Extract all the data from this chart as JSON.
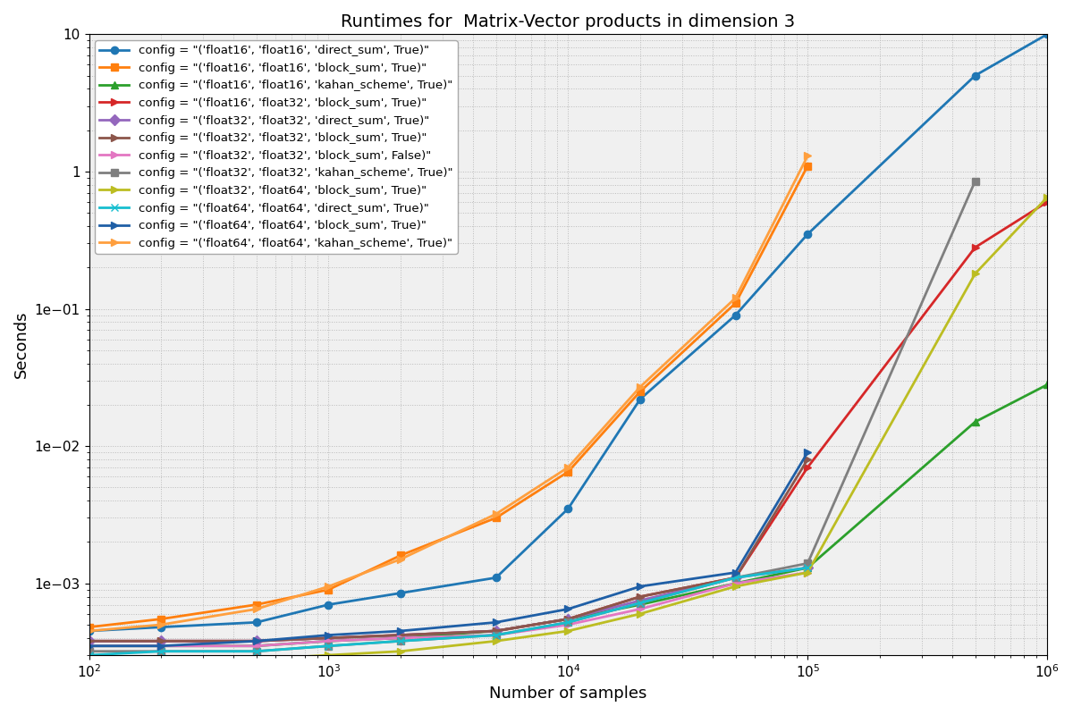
{
  "title": "Runtimes for  Matrix-Vector products in dimension 3",
  "xlabel": "Number of samples",
  "ylabel": "Seconds",
  "x": [
    100,
    200,
    500,
    1000,
    2000,
    5000,
    10000,
    20000,
    50000,
    100000,
    500000,
    1000000
  ],
  "series": [
    {
      "label": "config = \"('float16', 'float16', 'direct_sum', True)\"",
      "color": "#1f77b4",
      "marker": "o",
      "lw": 2.0,
      "y": [
        0.00045,
        0.00048,
        0.00052,
        0.0007,
        0.00085,
        0.0011,
        0.0035,
        0.022,
        0.09,
        0.35,
        5.0,
        10.0
      ]
    },
    {
      "label": "config = \"('float16', 'float16', 'block_sum', True)\"",
      "color": "#ff7f0e",
      "marker": "s",
      "lw": 2.0,
      "y": [
        0.00048,
        0.00055,
        0.0007,
        0.0009,
        0.0016,
        0.003,
        0.0065,
        0.025,
        0.11,
        1.1,
        null,
        null
      ]
    },
    {
      "label": "config = \"('float16', 'float16', 'kahan_scheme', True)\"",
      "color": "#2ca02c",
      "marker": "^",
      "lw": 2.0,
      "y": [
        0.00035,
        0.00035,
        0.00035,
        0.00038,
        0.0004,
        0.00045,
        0.00055,
        0.0007,
        0.001,
        0.0013,
        0.015,
        0.028
      ]
    },
    {
      "label": "config = \"('float16', 'float32', 'block_sum', True)\"",
      "color": "#d62728",
      "marker": ">",
      "lw": 2.0,
      "y": [
        0.00038,
        0.00038,
        0.00038,
        0.0004,
        0.00042,
        0.00045,
        0.00055,
        0.0008,
        0.0011,
        0.007,
        0.28,
        0.6
      ]
    },
    {
      "label": "config = \"('float32', 'float32', 'direct_sum', True)\"",
      "color": "#9467bd",
      "marker": "D",
      "lw": 2.0,
      "y": [
        0.00038,
        0.00038,
        0.00038,
        0.0004,
        0.00042,
        0.00045,
        0.00055,
        0.00075,
        0.0011,
        0.0013,
        null,
        null
      ]
    },
    {
      "label": "config = \"('float32', 'float32', 'block_sum', True)\"",
      "color": "#8c564b",
      "marker": ">",
      "lw": 2.0,
      "y": [
        0.00038,
        0.00038,
        0.00038,
        0.0004,
        0.00042,
        0.00045,
        0.00055,
        0.0008,
        0.0011,
        0.008,
        null,
        null
      ]
    },
    {
      "label": "config = \"('float32', 'float32', 'block_sum', False)\"",
      "color": "#e377c2",
      "marker": ">",
      "lw": 2.0,
      "y": [
        0.00035,
        0.00035,
        0.00035,
        0.00038,
        0.0004,
        0.00042,
        0.0005,
        0.00065,
        0.001,
        0.0012,
        null,
        null
      ]
    },
    {
      "label": "config = \"('float32', 'float32', 'kahan_scheme', True)\"",
      "color": "#7f7f7f",
      "marker": "s",
      "lw": 2.0,
      "y": [
        0.00032,
        0.00032,
        0.00032,
        0.00035,
        0.00038,
        0.00042,
        0.00052,
        0.00072,
        0.0011,
        0.0014,
        0.85,
        null
      ]
    },
    {
      "label": "config = \"('float32', 'float64', 'block_sum', True)\"",
      "color": "#bcbd22",
      "marker": ">",
      "lw": 2.0,
      "y": [
        0.00028,
        0.00028,
        0.00028,
        0.0003,
        0.00032,
        0.00038,
        0.00045,
        0.0006,
        0.00095,
        0.0012,
        0.18,
        0.65
      ]
    },
    {
      "label": "config = \"('float64', 'float64', 'direct_sum', True)\"",
      "color": "#17becf",
      "marker": "x",
      "lw": 2.0,
      "y": [
        0.0003,
        0.00032,
        0.00032,
        0.00035,
        0.00038,
        0.00042,
        0.00052,
        0.00072,
        0.0011,
        0.0013,
        null,
        null
      ]
    },
    {
      "label": "config = \"('float64', 'float64', 'block_sum', True)\"",
      "color": "#1f5fa6",
      "marker": ">",
      "lw": 2.0,
      "y": [
        0.00035,
        0.00035,
        0.00038,
        0.00042,
        0.00045,
        0.00052,
        0.00065,
        0.00095,
        0.0012,
        0.009,
        null,
        null
      ]
    },
    {
      "label": "config = \"('float64', 'float64', 'kahan_scheme', True)\"",
      "color": "#ff9f3e",
      "marker": ">",
      "lw": 2.0,
      "y": [
        0.00045,
        0.0005,
        0.00065,
        0.00095,
        0.0015,
        0.0032,
        0.007,
        0.027,
        0.12,
        1.3,
        null,
        null
      ]
    }
  ],
  "xlim": [
    100,
    1000000
  ],
  "ylim_bottom": 0.0003,
  "ylim_top": 10,
  "grid_color": "#bbbbbb",
  "background_color": "#f0f0f0",
  "title_fontsize": 14,
  "label_fontsize": 13,
  "tick_fontsize": 11,
  "legend_fontsize": 9.5
}
